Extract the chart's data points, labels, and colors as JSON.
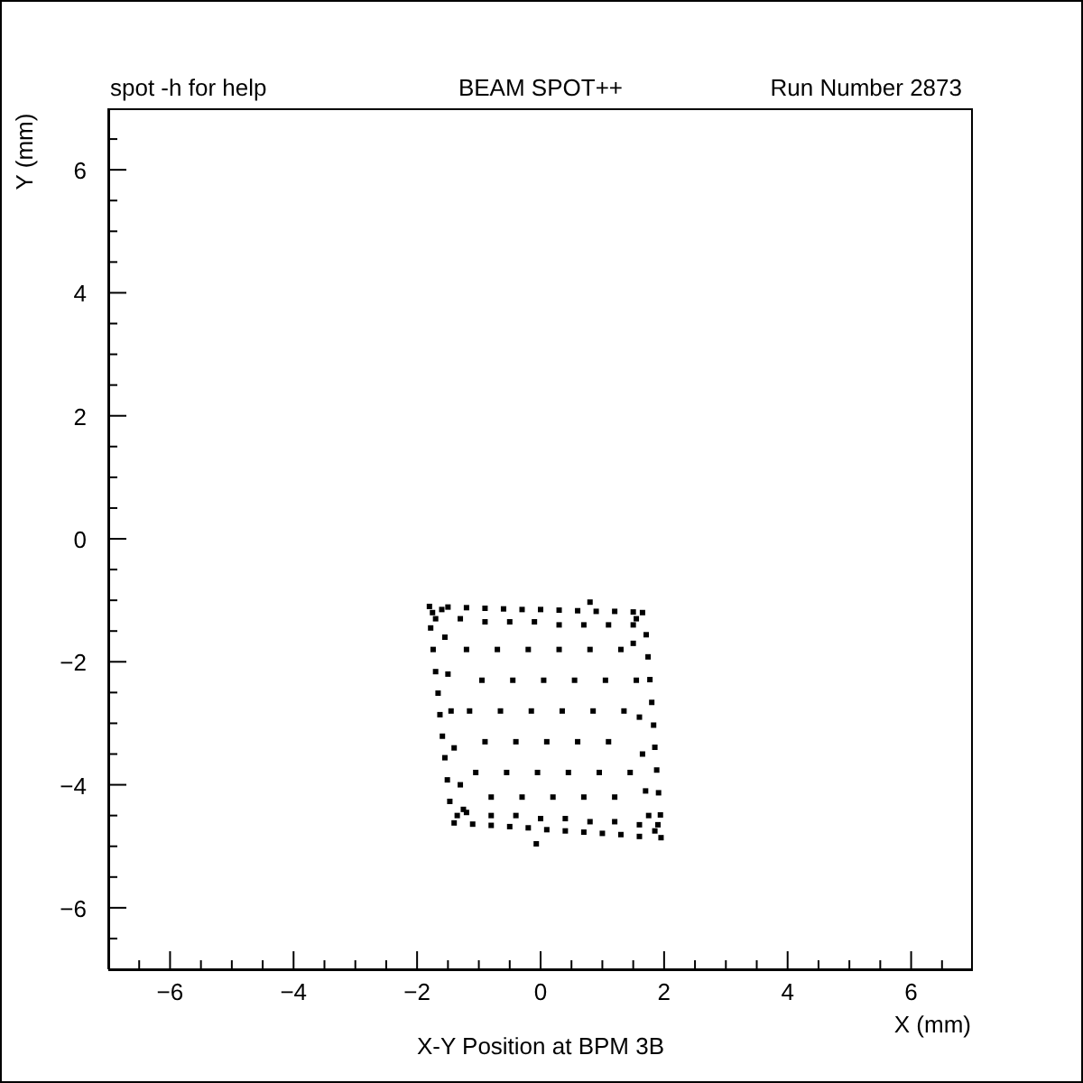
{
  "chart_data": {
    "type": "scatter",
    "title": "BEAM SPOT++",
    "xlabel": "X (mm)",
    "ylabel": "Y (mm)",
    "annotations": [
      "spot -h for help",
      "Run Number 2873",
      "X-Y Position at BPM 3B"
    ],
    "x": [
      -1.8,
      -1.5,
      -1.2,
      -0.9,
      -0.6,
      -0.3,
      0,
      0.3,
      0.6,
      0.9,
      1.2,
      1.5,
      1.65,
      -1.7,
      -1.3,
      -0.9,
      -0.5,
      -0.1,
      0.3,
      0.7,
      1.1,
      1.5,
      -1.78,
      -1.74,
      -1.7,
      -1.66,
      -1.63,
      -1.59,
      -1.55,
      -1.51,
      -1.47,
      -1.55,
      -1.5,
      -1.45,
      -1.4,
      -1.3,
      -1.25,
      1.71,
      1.74,
      1.77,
      1.8,
      1.83,
      1.85,
      1.88,
      1.91,
      1.94,
      1.5,
      1.55,
      1.6,
      1.65,
      1.7,
      1.75,
      -1.4,
      -1.1,
      -0.8,
      -0.5,
      -0.2,
      0.1,
      0.4,
      0.7,
      1.0,
      1.3,
      1.6,
      1.95,
      -1.2,
      -0.8,
      -0.4,
      0,
      0.4,
      0.8,
      1.2,
      1.6,
      -1.2,
      -0.7,
      -0.2,
      0.3,
      0.8,
      1.3,
      -0.95,
      -0.45,
      0.05,
      0.55,
      1.05,
      -1.15,
      -0.65,
      -0.15,
      0.35,
      0.85,
      1.35,
      -0.9,
      -0.4,
      0.1,
      0.6,
      1.1,
      -1.05,
      -0.55,
      -0.05,
      0.45,
      0.95,
      1.45,
      -0.8,
      -0.3,
      0.2,
      0.7,
      1.2,
      0.8,
      -0.07,
      -1.75,
      -1.6,
      1.55,
      1.85,
      -1.35,
      1.9
    ],
    "values": [
      -1.1,
      -1.11,
      -1.12,
      -1.13,
      -1.14,
      -1.15,
      -1.15,
      -1.16,
      -1.17,
      -1.18,
      -1.18,
      -1.19,
      -1.2,
      -1.3,
      -1.3,
      -1.35,
      -1.35,
      -1.35,
      -1.4,
      -1.4,
      -1.4,
      -1.4,
      -1.45,
      -1.8,
      -2.16,
      -2.51,
      -2.86,
      -3.21,
      -3.56,
      -3.92,
      -4.27,
      -1.6,
      -2.2,
      -2.8,
      -3.4,
      -4.0,
      -4.4,
      -1.56,
      -1.92,
      -2.29,
      -2.66,
      -3.03,
      -3.39,
      -3.76,
      -4.13,
      -4.49,
      -1.7,
      -2.3,
      -2.9,
      -3.5,
      -4.1,
      -4.5,
      -4.62,
      -4.64,
      -4.66,
      -4.68,
      -4.7,
      -4.73,
      -4.75,
      -4.77,
      -4.79,
      -4.81,
      -4.84,
      -4.86,
      -4.45,
      -4.5,
      -4.5,
      -4.55,
      -4.55,
      -4.6,
      -4.6,
      -4.65,
      -1.8,
      -1.8,
      -1.8,
      -1.8,
      -1.8,
      -1.8,
      -2.3,
      -2.3,
      -2.3,
      -2.3,
      -2.3,
      -2.8,
      -2.8,
      -2.8,
      -2.8,
      -2.8,
      -2.8,
      -3.3,
      -3.3,
      -3.3,
      -3.3,
      -3.3,
      -3.8,
      -3.8,
      -3.8,
      -3.8,
      -3.8,
      -3.8,
      -4.2,
      -4.2,
      -4.2,
      -4.2,
      -4.2,
      -1.03,
      -4.96,
      -1.2,
      -1.15,
      -1.3,
      -4.75,
      -4.5,
      -4.65
    ],
    "color": "#000000",
    "marker": "square",
    "xlim": [
      -7,
      7
    ],
    "ylim": [
      -7,
      7
    ],
    "xticks": [
      {
        "value": -6.5,
        "label": null
      },
      -6,
      {
        "value": -5.5,
        "label": null
      },
      {
        "value": -5,
        "label": null
      },
      {
        "value": -4.5,
        "label": null
      },
      -4,
      {
        "value": -3.5,
        "label": null
      },
      {
        "value": -3,
        "label": null
      },
      {
        "value": -2.5,
        "label": null
      },
      -2,
      {
        "value": -1.5,
        "label": null
      },
      {
        "value": -1,
        "label": null
      },
      {
        "value": -0.5,
        "label": null
      },
      0,
      {
        "value": 0.5,
        "label": null
      },
      {
        "value": 1,
        "label": null
      },
      {
        "value": 1.5,
        "label": null
      },
      2,
      {
        "value": 2.5,
        "label": null
      },
      {
        "value": 3,
        "label": null
      },
      {
        "value": 3.5,
        "label": null
      },
      4,
      {
        "value": 4.5,
        "label": null
      },
      {
        "value": 5,
        "label": null
      },
      {
        "value": 5.5,
        "label": null
      },
      6,
      {
        "value": 6.5,
        "label": null
      }
    ],
    "yticks": [
      {
        "value": -6.5,
        "label": null
      },
      -6,
      {
        "value": -5.5,
        "label": null
      },
      {
        "value": -5,
        "label": null
      },
      {
        "value": -4.5,
        "label": null
      },
      -4,
      {
        "value": -3.5,
        "label": null
      },
      {
        "value": -3,
        "label": null
      },
      {
        "value": -2.5,
        "label": null
      },
      -2,
      {
        "value": -1.5,
        "label": null
      },
      {
        "value": -1,
        "label": null
      },
      {
        "value": -0.5,
        "label": null
      },
      0,
      {
        "value": 0.5,
        "label": null
      },
      {
        "value": 1,
        "label": null
      },
      {
        "value": 1.5,
        "label": null
      },
      2,
      {
        "value": 2.5,
        "label": null
      },
      {
        "value": 3,
        "label": null
      },
      {
        "value": 3.5,
        "label": null
      },
      4,
      {
        "value": 4.5,
        "label": null
      },
      {
        "value": 5,
        "label": null
      },
      {
        "value": 5.5,
        "label": null
      },
      6,
      {
        "value": 6.5,
        "label": null
      }
    ]
  }
}
